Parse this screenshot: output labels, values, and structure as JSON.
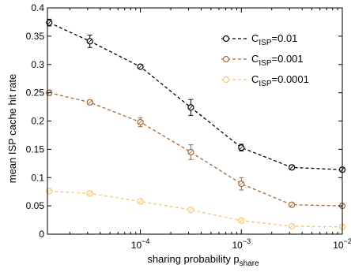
{
  "chart_data": {
    "type": "line",
    "xlabel": "sharing probability p",
    "xlabel_sub": "share",
    "ylabel": "mean ISP cache hit rate",
    "x_scale": "log",
    "xlim": [
      1.2e-05,
      0.01
    ],
    "ylim": [
      0,
      0.4
    ],
    "x_ticks": [
      {
        "value": 0.0001,
        "base": "10",
        "exp": "−4"
      },
      {
        "value": 0.001,
        "base": "10",
        "exp": "−3"
      },
      {
        "value": 0.01,
        "base": "10",
        "exp": "−2"
      }
    ],
    "y_ticks": [
      {
        "value": 0,
        "label": "0"
      },
      {
        "value": 0.05,
        "label": "0.05"
      },
      {
        "value": 0.1,
        "label": "0.1"
      },
      {
        "value": 0.15,
        "label": "0.15"
      },
      {
        "value": 0.2,
        "label": "0.2"
      },
      {
        "value": 0.25,
        "label": "0.25"
      },
      {
        "value": 0.3,
        "label": "0.3"
      },
      {
        "value": 0.35,
        "label": "0.35"
      },
      {
        "value": 0.4,
        "label": "0.4"
      }
    ],
    "grid": false,
    "legend_position": "top-right",
    "x": [
      1.25e-05,
      3.16e-05,
      0.0001,
      0.000316,
      0.001,
      0.00316,
      0.01
    ],
    "series": [
      {
        "name_main": "C",
        "name_sub": "ISP",
        "name_value": "=0.01",
        "color": "#000000",
        "values": [
          0.374,
          0.341,
          0.296,
          0.224,
          0.153,
          0.118,
          0.114
        ],
        "errors": [
          0.006,
          0.011,
          0.003,
          0.014,
          0.006,
          0.004,
          0.003
        ]
      },
      {
        "name_main": "C",
        "name_sub": "ISP",
        "name_value": "=0.001",
        "color": "#a0693a",
        "values": [
          0.25,
          0.233,
          0.198,
          0.145,
          0.089,
          0.052,
          0.05
        ],
        "errors": [
          0.005,
          0.004,
          0.008,
          0.013,
          0.011,
          0.003,
          0.003
        ]
      },
      {
        "name_main": "C",
        "name_sub": "ISP",
        "name_value": "=0.0001",
        "color": "#f5c77a",
        "values": [
          0.076,
          0.072,
          0.058,
          0.043,
          0.024,
          0.014,
          0.013
        ],
        "errors": [
          0.002,
          0.003,
          0.004,
          0.003,
          0.002,
          0.001,
          0.001
        ]
      }
    ]
  }
}
